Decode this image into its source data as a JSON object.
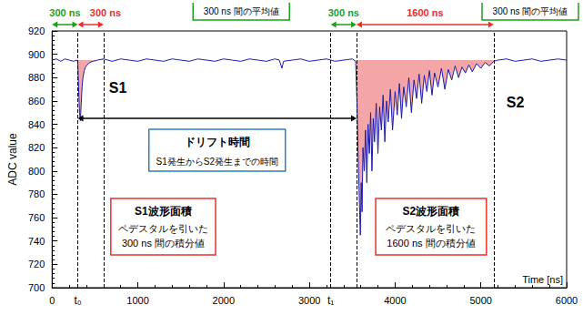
{
  "chart_data": {
    "type": "line",
    "x_label": "Time [ns]",
    "y_label": "ADC value",
    "xlim": [
      0,
      6000
    ],
    "xticks": [
      0,
      1000,
      2000,
      3000,
      4000,
      5000,
      6000
    ],
    "ylim": [
      700,
      920
    ],
    "yticks": [
      700,
      720,
      740,
      760,
      780,
      800,
      820,
      840,
      860,
      880,
      900,
      920
    ],
    "grid": false,
    "color": "#1c1ca8",
    "x": [
      0,
      50,
      100,
      150,
      200,
      250,
      290,
      300,
      310,
      320,
      330,
      340,
      350,
      360,
      375,
      390,
      410,
      440,
      480,
      530,
      600,
      700,
      800,
      900,
      1000,
      1100,
      1200,
      1300,
      1400,
      1500,
      1600,
      1700,
      1800,
      1900,
      2000,
      2100,
      2200,
      2300,
      2400,
      2500,
      2600,
      2650,
      2680,
      2700,
      2800,
      2900,
      3000,
      3100,
      3200,
      3300,
      3400,
      3500,
      3540,
      3555,
      3570,
      3585,
      3595,
      3605,
      3615,
      3625,
      3640,
      3655,
      3670,
      3685,
      3700,
      3715,
      3730,
      3745,
      3760,
      3780,
      3800,
      3820,
      3840,
      3860,
      3880,
      3900,
      3920,
      3945,
      3970,
      4000,
      4025,
      4050,
      4075,
      4100,
      4130,
      4160,
      4190,
      4220,
      4250,
      4280,
      4310,
      4340,
      4370,
      4400,
      4430,
      4460,
      4500,
      4540,
      4580,
      4620,
      4660,
      4700,
      4740,
      4780,
      4820,
      4860,
      4900,
      4950,
      5000,
      5050,
      5100,
      5150,
      5200,
      5300,
      5400,
      5500,
      5600,
      5700,
      5800,
      5900,
      6000
    ],
    "values": [
      895,
      896,
      894,
      896,
      895,
      894,
      895,
      893,
      870,
      850,
      843,
      858,
      872,
      880,
      886,
      889,
      891,
      893,
      894,
      895,
      896,
      894,
      896,
      895,
      894,
      896,
      895,
      894,
      896,
      895,
      894,
      896,
      895,
      894,
      896,
      895,
      894,
      896,
      895,
      894,
      896,
      895,
      888,
      894,
      895,
      896,
      894,
      895,
      896,
      894,
      895,
      896,
      894,
      860,
      810,
      770,
      745,
      790,
      765,
      820,
      800,
      835,
      790,
      840,
      815,
      850,
      800,
      845,
      825,
      858,
      815,
      855,
      835,
      865,
      825,
      860,
      842,
      870,
      835,
      868,
      848,
      875,
      845,
      872,
      855,
      880,
      850,
      878,
      862,
      883,
      858,
      882,
      868,
      886,
      865,
      884,
      872,
      888,
      870,
      887,
      878,
      890,
      880,
      889,
      884,
      891,
      885,
      892,
      888,
      893,
      890,
      894,
      895,
      896,
      894,
      895,
      896,
      894,
      895,
      896,
      895
    ],
    "pedestal": 895,
    "areas": [
      {
        "from": 300,
        "to": 600,
        "color": "#f4a6a6"
      },
      {
        "from": 3550,
        "to": 5150,
        "color": "#f4a6a6"
      }
    ],
    "vlines": [
      300,
      600,
      3250,
      3550,
      5150
    ],
    "markers": [
      {
        "label": "t₀",
        "x": 300
      },
      {
        "label": "t₁",
        "x": 3250
      }
    ],
    "intervals": [
      {
        "label": "300 ns",
        "from": 0,
        "to": 300,
        "color": "#1f9e1f"
      },
      {
        "label": "300 ns",
        "from": 300,
        "to": 600,
        "color": "#e8302a"
      },
      {
        "label": "300 ns",
        "from": 3250,
        "to": 3550,
        "color": "#1f9e1f"
      },
      {
        "label": "1600 ns",
        "from": 3550,
        "to": 5150,
        "color": "#e8302a"
      }
    ],
    "averages": [
      {
        "text": "300 ns 間の平均値",
        "color": "#1f9e1f"
      },
      {
        "text": "300 ns 間の平均値",
        "color": "#1f9e1f"
      }
    ],
    "peak_labels": [
      "S1",
      "S2"
    ],
    "drift": {
      "title": "ドリフト時間",
      "text": "S1発生からS2発生までの時間",
      "from": 300,
      "to": 3550,
      "color": "#2f7fc1"
    },
    "boxes": [
      {
        "title": "S1波形面積",
        "lines": [
          "ペデスタルを引いた",
          "300 ns 間の積分値"
        ],
        "color": "#e8302a"
      },
      {
        "title": "S2波形面積",
        "lines": [
          "ペデスタルを引いた",
          "1600 ns 間の積分値"
        ],
        "color": "#e8302a"
      }
    ]
  }
}
